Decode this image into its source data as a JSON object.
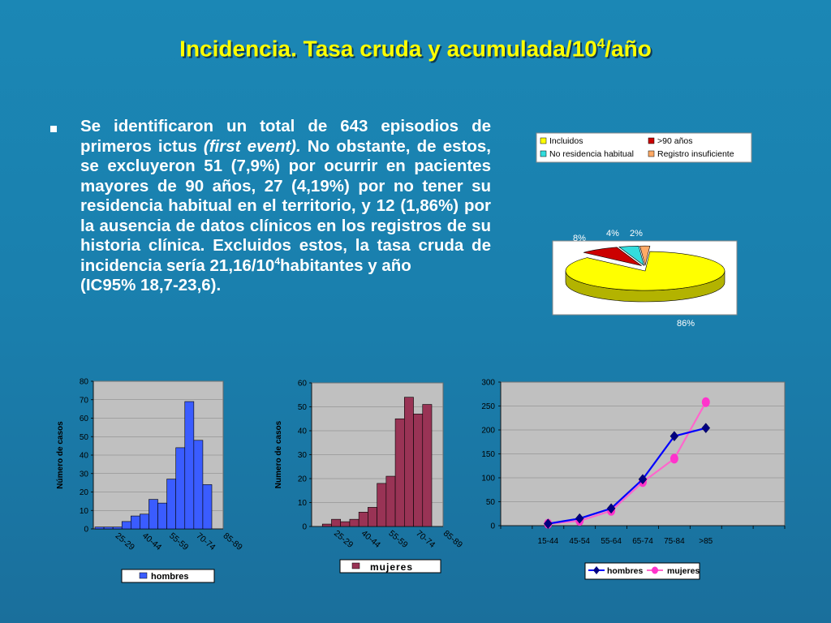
{
  "title": {
    "main": "Incidencia. Tasa cruda y acumulada/10",
    "sup": "4",
    "tail": "/año"
  },
  "paragraph": {
    "p1": "Se identificaron un total de 643 episodios de primeros ictus ",
    "p1_italic": "(first event).",
    "p2": " No obstante, de estos, se excluyeron 51 (7,9%) por ocurrir en pacientes mayores de 90 años, 27 (4,19%) por no tener su residencia habitual en el territorio, y 12 (1,86%) por la ausencia de datos clínicos en los registros de su historia clínica. Excluidos estos, la tasa cruda de incidencia sería 21,16/10",
    "p2_sup": "4",
    "p3": "habitantes y año",
    "p4": "(IC95% 18,7-23,6)."
  },
  "colors": {
    "accent_title": "#ffff00",
    "hombres": "#0000ff",
    "hombres_fill": "#3a5cff",
    "mujeres_fill": "#993355",
    "mujeres_line": "#ff66cc",
    "plot_bg": "#c0c0c0"
  },
  "chart_data": [
    {
      "type": "pie",
      "legend": [
        "Incluidos",
        ">90 años",
        "No residencia habitual",
        "Registro insuficiente"
      ],
      "values": [
        86,
        8,
        4,
        2
      ],
      "labels": [
        "86%",
        "8%",
        "4%",
        "2%"
      ],
      "colors": [
        "#ffff00",
        "#cc0000",
        "#33dddd",
        "#ffaa66"
      ],
      "legend_position": "top"
    },
    {
      "type": "bar",
      "series": [
        {
          "name": "hombres",
          "values": [
            1,
            1,
            1,
            4,
            7,
            8,
            16,
            14,
            27,
            44,
            69,
            48,
            24
          ]
        }
      ],
      "tick_labels": [
        "25-29",
        "40-44",
        "55-59",
        "70-74",
        "85-89"
      ],
      "ylabel": "Número de casos",
      "ylim": [
        0,
        80
      ],
      "yticks": [
        0,
        10,
        20,
        30,
        40,
        50,
        60,
        70,
        80
      ]
    },
    {
      "type": "bar",
      "series": [
        {
          "name": "mujeres",
          "values": [
            0,
            1,
            3,
            2,
            3,
            6,
            8,
            18,
            21,
            45,
            54,
            47,
            51
          ]
        }
      ],
      "tick_labels": [
        "25-29",
        "40-44",
        "55-59",
        "70-74",
        "85-89"
      ],
      "ylabel": "Numero de casos",
      "ylim": [
        0,
        60
      ],
      "yticks": [
        0,
        10,
        20,
        30,
        40,
        50,
        60
      ]
    },
    {
      "type": "line",
      "categories": [
        "15-44",
        "45-54",
        "55-64",
        "65-74",
        "75-84",
        ">85"
      ],
      "series": [
        {
          "name": "hombres",
          "values": [
            4,
            15,
            36,
            97,
            187,
            204
          ]
        },
        {
          "name": "mujeres",
          "values": [
            4,
            10,
            31,
            91,
            140,
            258
          ]
        }
      ],
      "ylim": [
        0,
        300
      ],
      "yticks": [
        0,
        50,
        100,
        150,
        200,
        250,
        300
      ]
    }
  ]
}
